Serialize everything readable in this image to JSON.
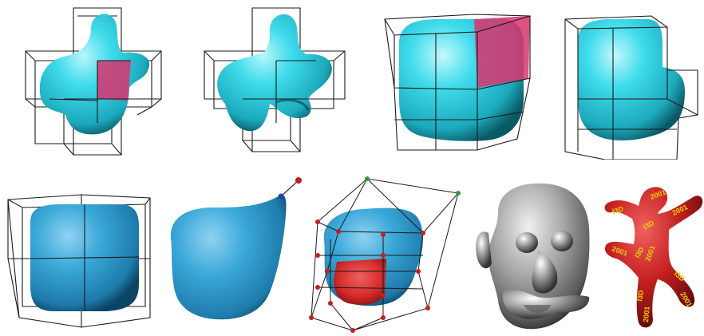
{
  "figure": {
    "panels": [
      {
        "id": "a",
        "shape": "blob-with-bumps",
        "surface_color": "#34d6e6",
        "highlight_cell": "#d9346e",
        "grid": "lattice-cells"
      },
      {
        "id": "b",
        "shape": "blob-bumps-deformed",
        "surface_color": "#34d6e6",
        "grid": "lattice-cells"
      },
      {
        "id": "c",
        "shape": "rounded-cube",
        "surface_color": "#34d6e6",
        "highlight_cell": "#d9346e",
        "grid": "lattice-cells"
      },
      {
        "id": "d",
        "shape": "rounded-cube-lobe",
        "surface_color": "#34d6e6",
        "grid": "lattice-cells"
      },
      {
        "id": "e",
        "shape": "rounded-cube",
        "surface_color": "#3aa8d8",
        "grid": "2x2x2-lattice"
      },
      {
        "id": "f",
        "shape": "pulled-blob",
        "surface_color": "#3aa8d8",
        "handle_colors": [
          "#2a3fb8",
          "#c41e1e"
        ]
      },
      {
        "id": "g",
        "shape": "control-lattice-blob",
        "surface_color": "#3aa8d8",
        "highlight_region": "#d42a2a",
        "point_color": "#c41e1e",
        "top_points": "#2f9a3a"
      },
      {
        "id": "h",
        "shape": "sculpted-head",
        "surface_color": "#9a9a9a"
      },
      {
        "id": "i",
        "shape": "textured-figure",
        "surface_color": "#c51f1f",
        "texture_color": "#f4d000",
        "texture_text": [
          "2001",
          "I3D",
          "2001",
          "I3D",
          "2001",
          "I3D",
          "2001",
          "I3D",
          "2001",
          "I3D",
          "2001"
        ]
      }
    ]
  }
}
